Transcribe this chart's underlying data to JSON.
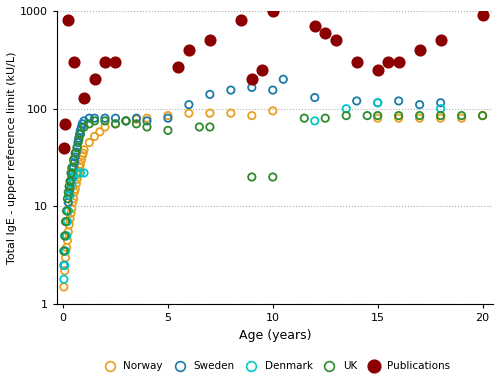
{
  "norway": {
    "color": "#E8A020",
    "label": "Norway",
    "x": [
      0.04,
      0.08,
      0.12,
      0.17,
      0.21,
      0.25,
      0.29,
      0.33,
      0.38,
      0.42,
      0.46,
      0.5,
      0.54,
      0.58,
      0.63,
      0.67,
      0.71,
      0.75,
      0.79,
      0.83,
      0.88,
      0.92,
      0.96,
      1.0,
      1.25,
      1.5,
      1.75,
      2.0,
      2.5,
      3.0,
      3.5,
      4.0,
      5.0,
      6.0,
      7.0,
      8.0,
      9.0,
      10.0,
      15.0,
      16.0,
      17.0,
      18.0,
      19.0,
      20.0
    ],
    "y": [
      1.5,
      2.2,
      3.0,
      3.8,
      4.5,
      5.5,
      6.5,
      7.5,
      8.5,
      9.5,
      11.0,
      12.0,
      14.0,
      15.0,
      17.0,
      19.0,
      21.0,
      23.0,
      25.0,
      27.0,
      30.0,
      33.0,
      35.0,
      38.0,
      45.0,
      52.0,
      58.0,
      65.0,
      70.0,
      75.0,
      78.0,
      80.0,
      85.0,
      90.0,
      90.0,
      90.0,
      85.0,
      95.0,
      80.0,
      80.0,
      80.0,
      80.0,
      80.0,
      85.0
    ]
  },
  "sweden": {
    "color": "#1B7BA8",
    "label": "Sweden",
    "x": [
      0.04,
      0.08,
      0.12,
      0.17,
      0.21,
      0.25,
      0.29,
      0.33,
      0.38,
      0.42,
      0.46,
      0.5,
      0.54,
      0.58,
      0.63,
      0.67,
      0.71,
      0.75,
      0.79,
      0.83,
      0.88,
      0.92,
      1.0,
      1.25,
      1.5,
      2.0,
      2.5,
      3.0,
      3.5,
      4.0,
      5.0,
      6.0,
      7.0,
      8.0,
      9.0,
      10.0,
      10.5,
      12.0,
      14.0,
      15.0,
      16.0,
      17.0,
      18.0
    ],
    "y": [
      2.5,
      3.5,
      5.0,
      7.0,
      9.0,
      11.0,
      13.0,
      15.0,
      18.0,
      20.0,
      22.0,
      25.0,
      28.0,
      32.0,
      36.0,
      40.0,
      45.0,
      50.0,
      55.0,
      60.0,
      65.0,
      70.0,
      75.0,
      80.0,
      80.0,
      80.0,
      80.0,
      75.0,
      80.0,
      75.0,
      80.0,
      110.0,
      140.0,
      155.0,
      165.0,
      155.0,
      200.0,
      130.0,
      120.0,
      115.0,
      120.0,
      110.0,
      115.0
    ]
  },
  "denmark": {
    "color": "#00C8C8",
    "label": "Denmark",
    "x": [
      0.04,
      0.08,
      0.12,
      0.17,
      0.21,
      0.25,
      0.33,
      0.42,
      0.5,
      0.67,
      0.83,
      1.0,
      12.0,
      13.5,
      15.0,
      18.0
    ],
    "y": [
      1.8,
      2.5,
      3.5,
      5.0,
      7.0,
      9.0,
      13.0,
      17.0,
      20.0,
      22.0,
      22.0,
      22.0,
      75.0,
      100.0,
      115.0,
      100.0
    ]
  },
  "uk": {
    "color": "#2D8B2D",
    "label": "UK",
    "x": [
      0.04,
      0.08,
      0.12,
      0.17,
      0.21,
      0.25,
      0.29,
      0.33,
      0.38,
      0.42,
      0.5,
      0.58,
      0.67,
      0.75,
      0.83,
      1.0,
      1.25,
      1.5,
      2.0,
      2.5,
      3.0,
      3.5,
      4.0,
      5.0,
      6.5,
      7.0,
      9.0,
      10.0,
      11.5,
      12.5,
      13.5,
      14.5,
      15.0,
      16.0,
      17.0,
      18.0,
      19.0,
      20.0
    ],
    "y": [
      3.5,
      5.0,
      7.0,
      9.0,
      12.0,
      14.0,
      16.0,
      18.0,
      22.0,
      25.0,
      30.0,
      35.0,
      40.0,
      48.0,
      55.0,
      65.0,
      70.0,
      75.0,
      75.0,
      70.0,
      75.0,
      70.0,
      65.0,
      60.0,
      65.0,
      65.0,
      20.0,
      20.0,
      80.0,
      80.0,
      85.0,
      85.0,
      85.0,
      85.0,
      85.0,
      85.0,
      85.0,
      85.0
    ]
  },
  "publications": {
    "color": "#8B0000",
    "label": "Publications",
    "x": [
      0.04,
      0.08,
      0.25,
      0.5,
      1.0,
      1.5,
      2.0,
      2.5,
      5.5,
      6.0,
      7.0,
      8.5,
      9.0,
      9.5,
      10.0,
      12.0,
      12.5,
      13.0,
      14.0,
      15.0,
      15.5,
      16.0,
      17.0,
      18.0,
      20.0
    ],
    "y": [
      40.0,
      70.0,
      800.0,
      300.0,
      130.0,
      200.0,
      300.0,
      300.0,
      270.0,
      400.0,
      500.0,
      800.0,
      200.0,
      250.0,
      1000.0,
      700.0,
      600.0,
      500.0,
      300.0,
      250.0,
      300.0,
      300.0,
      400.0,
      500.0,
      900.0
    ]
  },
  "xlabel": "Age (years)",
  "ylabel": "Total IgE - upper reference limit (kU/L)",
  "ylim": [
    1,
    1000
  ],
  "xlim": [
    -0.3,
    20.5
  ],
  "yticks": [
    1,
    10,
    100,
    1000
  ],
  "xticks": [
    0,
    5,
    10,
    15,
    20
  ],
  "background_color": "#ffffff",
  "grid_color": "#b0b0b0"
}
